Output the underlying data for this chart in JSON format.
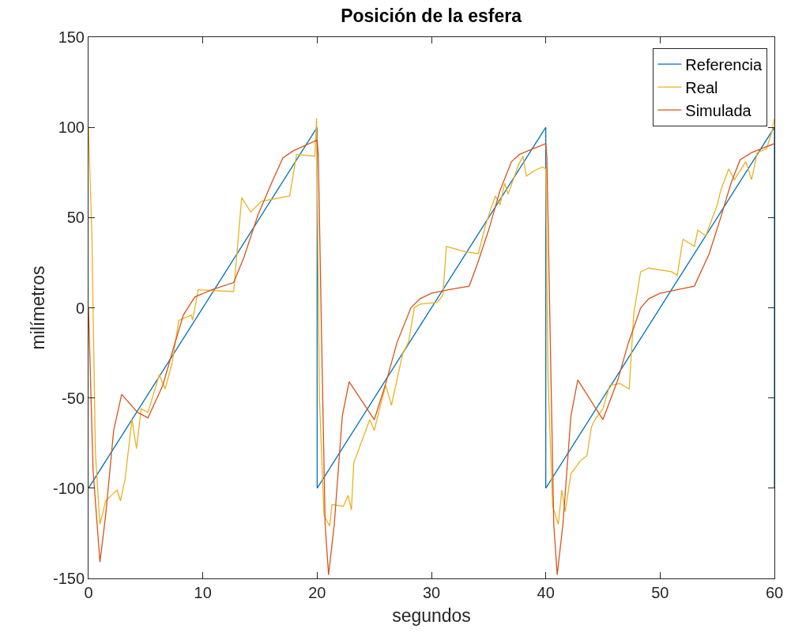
{
  "chart_data": {
    "type": "line",
    "title": "Posición de la esfera",
    "xlabel": "segundos",
    "ylabel": "milímetros",
    "xlim": [
      0,
      60
    ],
    "xticks": [
      0,
      10,
      20,
      30,
      40,
      50,
      60
    ],
    "ylim": [
      -150,
      150
    ],
    "yticks": [
      -150,
      -100,
      -50,
      0,
      50,
      100,
      150
    ],
    "grid": false,
    "legend": "top right",
    "marker": "none",
    "line_style": "solid",
    "series": [
      {
        "name": "Referencia",
        "color": "#0072bd",
        "x": [
          0,
          20,
          20,
          40,
          40,
          60,
          60
        ],
        "values": [
          -100,
          100,
          -100,
          100,
          -100,
          100,
          -100
        ]
      },
      {
        "name": "Real",
        "color": "#edb120",
        "x": [
          0,
          0.3,
          0.6,
          1.0,
          1.5,
          2.5,
          2.8,
          3.2,
          3.8,
          4.2,
          4.6,
          5.2,
          6.2,
          6.7,
          7.3,
          7.9,
          9,
          9.1,
          9.6,
          12.7,
          13.4,
          14.2,
          15.1,
          17.6,
          18.2,
          19.8,
          19.95,
          20.2,
          20.6,
          21.1,
          21.3,
          22.3,
          22.7,
          23,
          23.2,
          23.9,
          24.6,
          25,
          25.5,
          26,
          26.5,
          27.5,
          28,
          28.5,
          29,
          30.5,
          31,
          31.3,
          33,
          34.1,
          34.7,
          35.2,
          35.6,
          36,
          36.4,
          36.7,
          37.1,
          37.6,
          38,
          38.3,
          39,
          39.7,
          40,
          40.2,
          40.6,
          41.1,
          41.4,
          41.7,
          42.2,
          43,
          43.6,
          44,
          44.3,
          45,
          45.6,
          46.5,
          47.3,
          47.7,
          48.3,
          49,
          51,
          51.5,
          52,
          53,
          53.3,
          54,
          55,
          55.3,
          56,
          56.5,
          57.5,
          58,
          58.5,
          59.3,
          59.8,
          60
        ],
        "values": [
          100,
          40,
          -80,
          -120,
          -107,
          -101,
          -107,
          -95,
          -62,
          -78,
          -56,
          -58,
          -37,
          -45,
          -31,
          -7,
          -4,
          -7,
          10,
          9,
          61,
          53,
          59,
          62,
          85,
          84,
          105,
          -50,
          -115,
          -121,
          -109,
          -110,
          -104,
          -112,
          -86,
          -74,
          -62,
          -68,
          -55,
          -43,
          -54,
          -25,
          -19,
          0,
          2,
          3,
          7,
          34,
          31,
          30,
          45,
          55,
          62,
          57,
          69,
          63,
          70,
          79,
          84,
          73,
          76,
          78,
          77,
          -40,
          -110,
          -120,
          -101,
          -113,
          -92,
          -85,
          -82,
          -66,
          -62,
          -56,
          -43,
          -42,
          -45,
          -3,
          20,
          22,
          20,
          18,
          38,
          34,
          43,
          40,
          57,
          65,
          77,
          71,
          81,
          71,
          86,
          88,
          98,
          105
        ]
      },
      {
        "name": "Simulada",
        "color": "#d95319",
        "x": [
          0,
          0.4,
          1.0,
          1.5,
          2.2,
          2.9,
          4.3,
          5.2,
          6.5,
          7.4,
          8.3,
          9.3,
          10.8,
          12.7,
          13.6,
          14.8,
          16,
          17,
          17.9,
          20,
          20.1,
          20.4,
          20.7,
          21,
          21.5,
          22.2,
          22.8,
          25,
          26,
          27,
          28.2,
          29,
          30,
          31.5,
          33.3,
          34,
          35,
          36,
          37,
          37.7,
          40,
          40.1,
          40.4,
          40.7,
          41,
          41.5,
          42.2,
          42.8,
          45,
          46.3,
          47.2,
          48.3,
          49,
          50,
          51.5,
          53,
          54.3,
          55.3,
          56.2,
          57,
          58,
          60
        ],
        "values": [
          0,
          -90,
          -141,
          -115,
          -68,
          -48,
          -58,
          -61,
          -43,
          -23,
          -4,
          6,
          10,
          14,
          28,
          51,
          69,
          83,
          87,
          93,
          85,
          -20,
          -120,
          -148,
          -120,
          -60,
          -41,
          -62,
          -42,
          -19,
          0,
          5,
          8,
          10,
          12,
          24,
          43,
          65,
          81,
          85,
          91,
          83,
          -20,
          -120,
          -148,
          -120,
          -60,
          -40,
          -62,
          -40,
          -20,
          0,
          5,
          8,
          10,
          12,
          30,
          50,
          69,
          82,
          86,
          91
        ]
      }
    ]
  }
}
